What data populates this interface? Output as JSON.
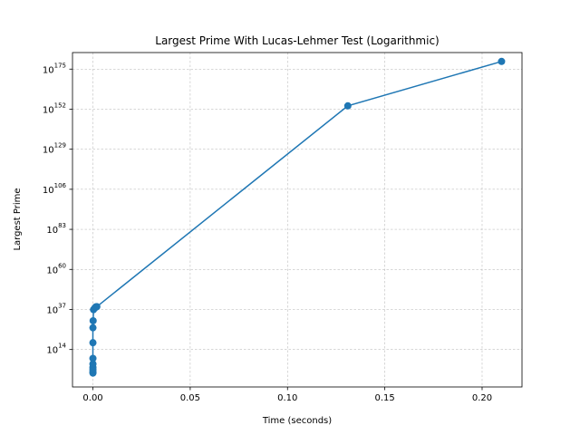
{
  "chart_data": {
    "type": "line",
    "title": "Largest Prime With Lucas-Lehmer Test (Logarithmic)",
    "xlabel": "Time (seconds)",
    "ylabel": "Largest Prime",
    "x_ticks": [
      0.0,
      0.05,
      0.1,
      0.15,
      0.2
    ],
    "x_tick_labels": [
      "0.00",
      "0.05",
      "0.10",
      "0.15",
      "0.20"
    ],
    "y_scale": "log",
    "y_tick_exponents": [
      14,
      37,
      60,
      83,
      106,
      129,
      152,
      175
    ],
    "y_tick_labels": [
      {
        "base": "10",
        "exp": "14"
      },
      {
        "base": "10",
        "exp": "37"
      },
      {
        "base": "10",
        "exp": "60"
      },
      {
        "base": "10",
        "exp": "83"
      },
      {
        "base": "10",
        "exp": "106"
      },
      {
        "base": "10",
        "exp": "129"
      },
      {
        "base": "10",
        "exp": "152"
      },
      {
        "base": "10",
        "exp": "175"
      }
    ],
    "xlim": [
      -0.0105,
      0.2205
    ],
    "ylim_exponent": [
      -7.5,
      184.5
    ],
    "grid": true,
    "color": "#1f77b4",
    "series": [
      {
        "x": [
          0.0,
          0.0,
          0.0,
          0.0,
          0.0,
          0.0,
          0.0,
          0.0,
          0.0001,
          0.0003,
          0.001,
          0.0015,
          0.002,
          0.131,
          0.21
        ],
        "y_exponent": [
          0.5,
          1.1,
          2.4,
          3.7,
          5.7,
          8.9,
          17.9,
          26.5,
          30.5,
          36.9,
          37.9,
          38.5,
          38.6,
          153.9,
          179.4
        ]
      }
    ]
  }
}
